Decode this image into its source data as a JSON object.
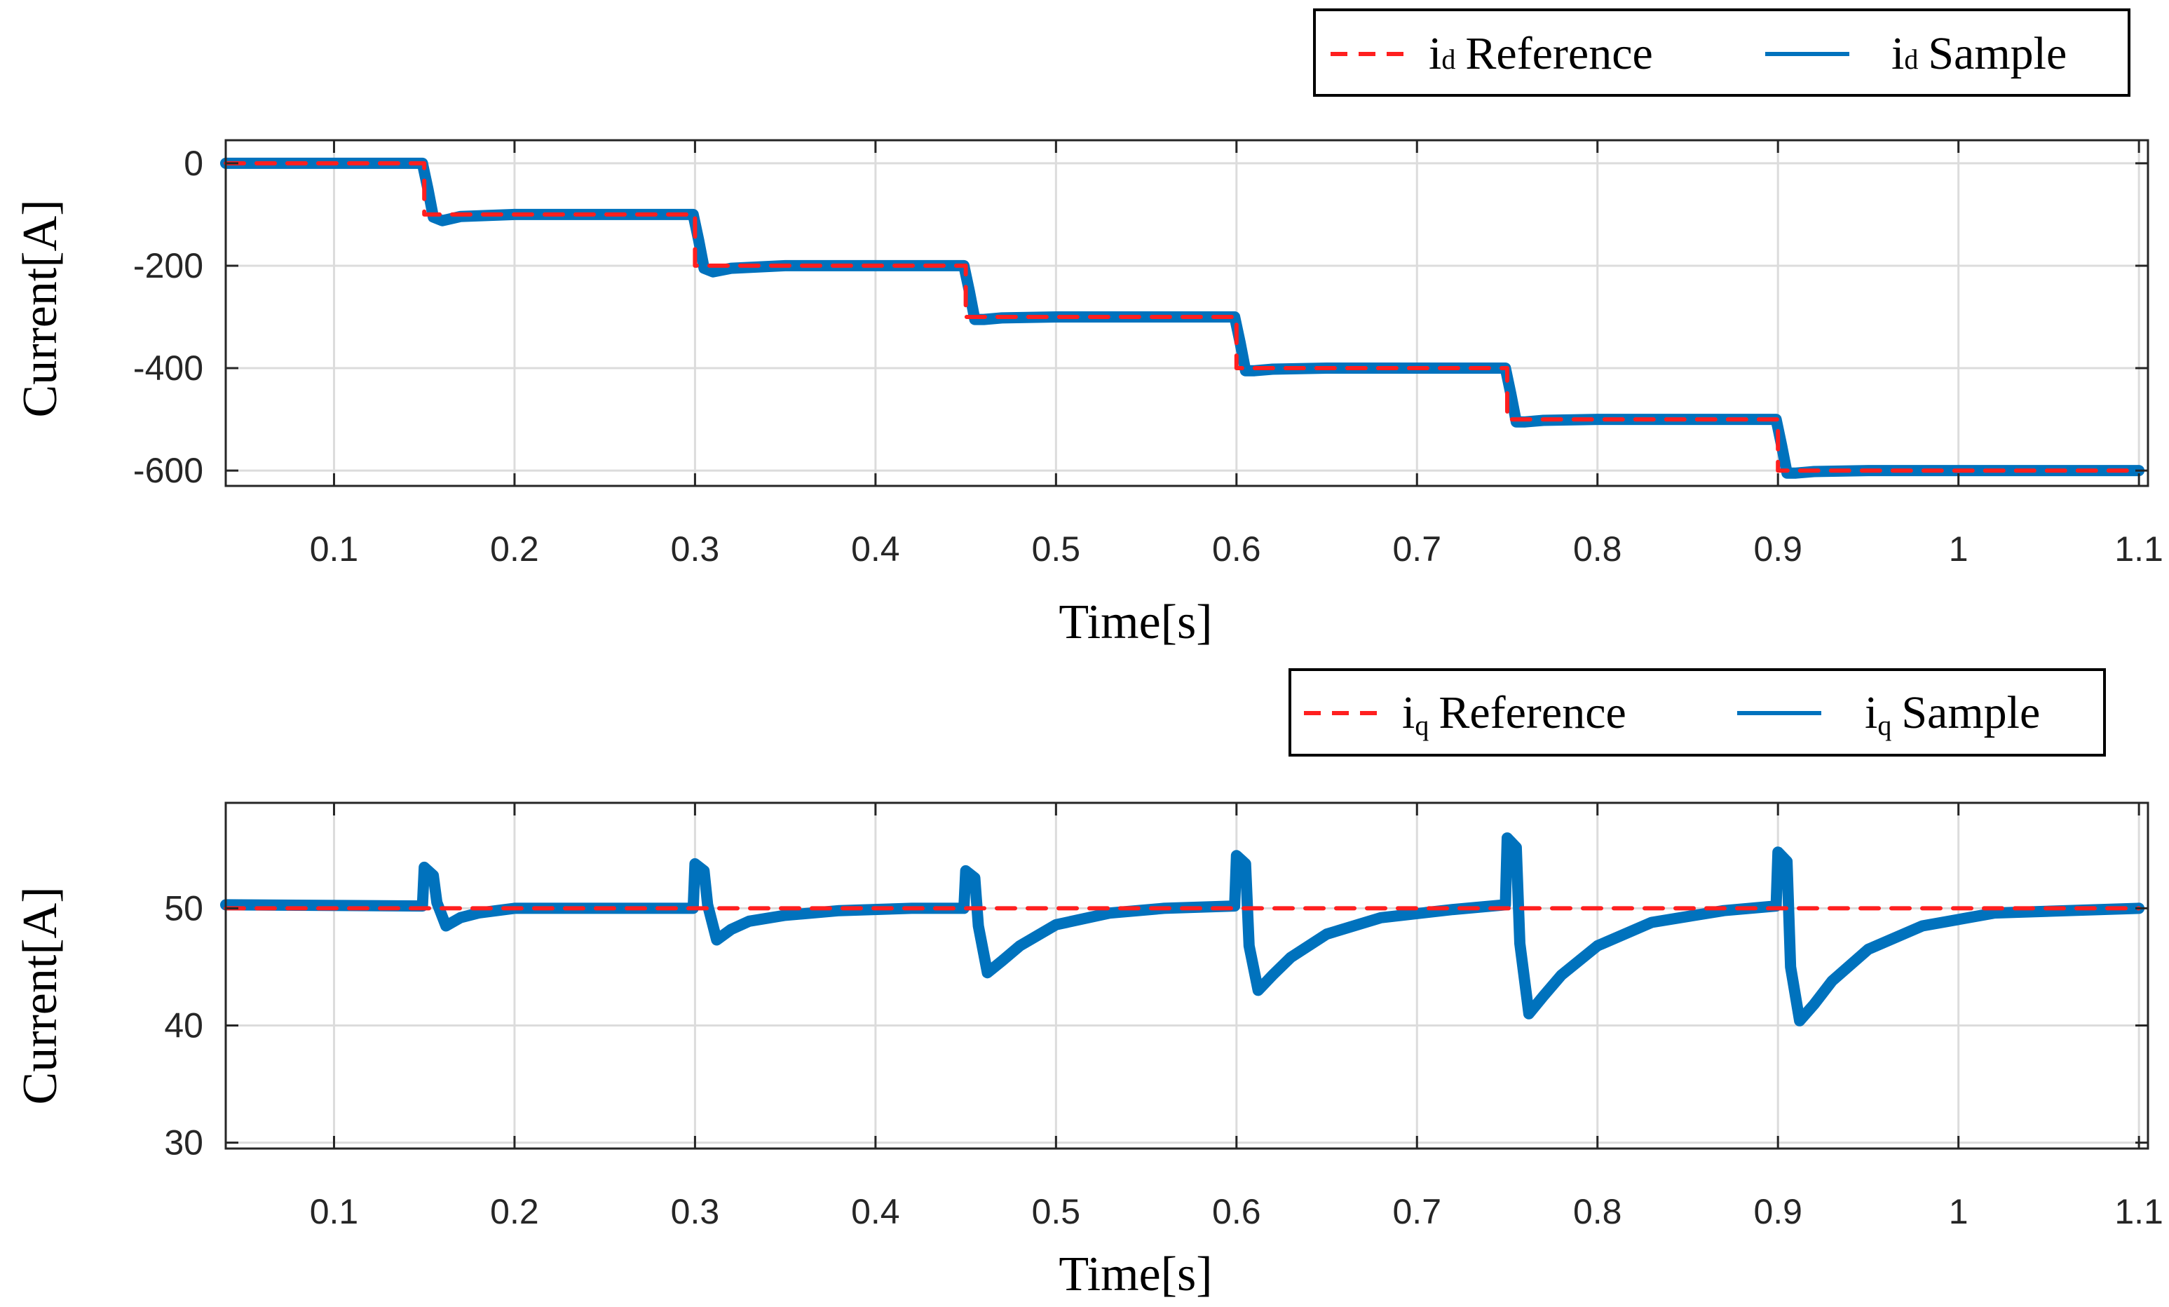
{
  "colors": {
    "reference": "#ff1f1f",
    "sample": "#0072bd",
    "axis": "#262626",
    "grid": "#dcdcdc"
  },
  "chart_data": [
    {
      "id": "id",
      "type": "line",
      "xlabel": "Time[s]",
      "ylabel": "Current[A]",
      "xlim": [
        0.04,
        1.105
      ],
      "ylim": [
        -630,
        45
      ],
      "grid": true,
      "xticks": [
        0.1,
        0.2,
        0.3,
        0.4,
        0.5,
        0.6,
        0.7,
        0.8,
        0.9,
        1,
        1.1
      ],
      "xtick_labels": [
        "0.1",
        "0.2",
        "0.3",
        "0.4",
        "0.5",
        "0.6",
        "0.7",
        "0.8",
        "0.9",
        "1",
        "1.1"
      ],
      "yticks": [
        0,
        -200,
        -400,
        -600
      ],
      "ytick_labels": [
        "0",
        "-200",
        "-400",
        "-600"
      ],
      "legend": {
        "placement": "top-right",
        "entries": [
          {
            "symbol": "i",
            "sub": "d",
            "label": "Reference",
            "style": "dashed"
          },
          {
            "symbol": "i",
            "sub": "d",
            "label": "Sample",
            "style": "solid"
          }
        ]
      },
      "series": [
        {
          "name": "id Reference",
          "style": "dashed",
          "x": [
            0.04,
            0.15,
            0.15,
            0.3,
            0.3,
            0.45,
            0.45,
            0.6,
            0.6,
            0.75,
            0.75,
            0.9,
            0.9,
            1.1
          ],
          "y": [
            0,
            0,
            -100,
            -100,
            -200,
            -200,
            -300,
            -300,
            -400,
            -400,
            -500,
            -500,
            -600,
            -600
          ]
        },
        {
          "name": "id Sample",
          "style": "solid",
          "x": [
            0.04,
            0.149,
            0.152,
            0.155,
            0.16,
            0.17,
            0.2,
            0.299,
            0.302,
            0.305,
            0.31,
            0.32,
            0.35,
            0.449,
            0.452,
            0.455,
            0.46,
            0.47,
            0.5,
            0.599,
            0.602,
            0.605,
            0.61,
            0.62,
            0.65,
            0.749,
            0.752,
            0.755,
            0.76,
            0.77,
            0.8,
            0.899,
            0.902,
            0.905,
            0.91,
            0.92,
            0.95,
            1.1
          ],
          "y": [
            0,
            0,
            -50,
            -105,
            -112,
            -104,
            -100,
            -100,
            -150,
            -205,
            -212,
            -205,
            -200,
            -200,
            -250,
            -305,
            -305,
            -302,
            -300,
            -300,
            -350,
            -405,
            -405,
            -402,
            -400,
            -400,
            -450,
            -505,
            -505,
            -502,
            -500,
            -500,
            -550,
            -605,
            -605,
            -602,
            -600,
            -600
          ]
        }
      ]
    },
    {
      "id": "iq",
      "type": "line",
      "xlabel": "Time[s]",
      "ylabel": "Current[A]",
      "xlim": [
        0.04,
        1.105
      ],
      "ylim": [
        29.5,
        59
      ],
      "grid": true,
      "xticks": [
        0.1,
        0.2,
        0.3,
        0.4,
        0.5,
        0.6,
        0.7,
        0.8,
        0.9,
        1,
        1.1
      ],
      "xtick_labels": [
        "0.1",
        "0.2",
        "0.3",
        "0.4",
        "0.5",
        "0.6",
        "0.7",
        "0.8",
        "0.9",
        "1",
        "1.1"
      ],
      "yticks": [
        30,
        40,
        50
      ],
      "ytick_labels": [
        "30",
        "40",
        "50"
      ],
      "legend": {
        "placement": "top-right",
        "entries": [
          {
            "symbol": "i",
            "sub": "q",
            "label": "Reference",
            "style": "dashed"
          },
          {
            "symbol": "i",
            "sub": "q",
            "label": "Sample",
            "style": "solid"
          }
        ]
      },
      "series": [
        {
          "name": "iq Reference",
          "style": "dashed",
          "x": [
            0.04,
            1.1
          ],
          "y": [
            50,
            50
          ]
        },
        {
          "name": "iq Sample",
          "style": "solid",
          "x": [
            0.04,
            0.149,
            0.15,
            0.155,
            0.157,
            0.162,
            0.17,
            0.18,
            0.2,
            0.299,
            0.3,
            0.305,
            0.307,
            0.312,
            0.32,
            0.33,
            0.35,
            0.38,
            0.42,
            0.449,
            0.45,
            0.455,
            0.457,
            0.462,
            0.47,
            0.48,
            0.5,
            0.53,
            0.56,
            0.599,
            0.6,
            0.605,
            0.607,
            0.612,
            0.62,
            0.63,
            0.65,
            0.68,
            0.72,
            0.749,
            0.75,
            0.755,
            0.757,
            0.762,
            0.77,
            0.78,
            0.8,
            0.83,
            0.87,
            0.899,
            0.9,
            0.905,
            0.907,
            0.912,
            0.92,
            0.93,
            0.95,
            0.98,
            1.02,
            1.1
          ],
          "y": [
            50.3,
            50.2,
            53.5,
            52.8,
            50.5,
            48.5,
            49.2,
            49.6,
            50.0,
            50.0,
            53.8,
            53.2,
            50.3,
            47.3,
            48.2,
            48.9,
            49.4,
            49.8,
            50.0,
            50.0,
            53.2,
            52.6,
            48.5,
            44.5,
            45.5,
            46.8,
            48.6,
            49.6,
            50.0,
            50.2,
            54.5,
            53.8,
            46.8,
            43.0,
            44.3,
            45.8,
            47.8,
            49.2,
            49.9,
            50.3,
            56.0,
            55.2,
            47.0,
            41.0,
            42.5,
            44.3,
            46.8,
            48.8,
            49.8,
            50.2,
            54.8,
            54.0,
            45.0,
            40.4,
            41.8,
            43.8,
            46.5,
            48.5,
            49.6,
            50.0
          ]
        }
      ]
    }
  ]
}
